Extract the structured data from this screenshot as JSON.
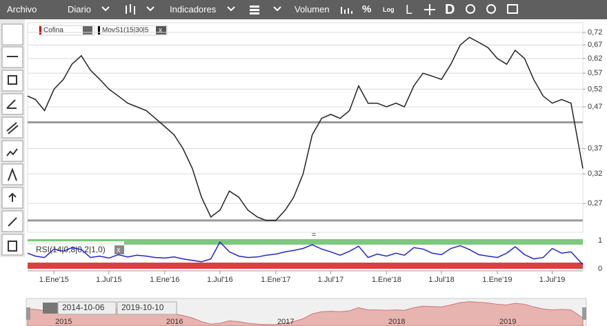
{
  "toolbar": {
    "items": [
      "Archivo",
      "Diario",
      "Indicadores",
      "Volumen",
      "%",
      "Log",
      "L",
      "D"
    ]
  },
  "legend": {
    "symbol": "Cofina",
    "indicator": "MovS1(15|30|5",
    "close": "x"
  },
  "chart_data": [
    {
      "type": "line",
      "log_scale": true,
      "grid": true,
      "x": [
        "2014-10-06",
        "2014-11-01",
        "2014-12-01",
        "2015-01-01",
        "2015-02-01",
        "2015-03-01",
        "2015-04-01",
        "2015-05-01",
        "2015-06-01",
        "2015-07-01",
        "2015-08-01",
        "2015-09-01",
        "2015-10-01",
        "2015-11-01",
        "2015-12-01",
        "2016-01-01",
        "2016-02-01",
        "2016-03-01",
        "2016-04-01",
        "2016-05-01",
        "2016-06-01",
        "2016-07-01",
        "2016-08-01",
        "2016-09-01",
        "2016-10-01",
        "2016-11-01",
        "2016-12-01",
        "2017-01-01",
        "2017-02-01",
        "2017-03-01",
        "2017-04-01",
        "2017-05-01",
        "2017-06-01",
        "2017-07-01",
        "2017-08-01",
        "2017-09-01",
        "2017-10-01",
        "2017-11-01",
        "2017-12-01",
        "2018-01-01",
        "2018-02-01",
        "2018-03-01",
        "2018-04-01",
        "2018-05-01",
        "2018-06-01",
        "2018-07-01",
        "2018-08-01",
        "2018-09-01",
        "2018-10-01",
        "2018-11-01",
        "2018-12-01",
        "2019-01-01",
        "2019-02-01",
        "2019-03-01",
        "2019-04-01",
        "2019-05-01",
        "2019-06-01",
        "2019-07-01",
        "2019-08-01",
        "2019-09-01",
        "2019-10-10"
      ],
      "series": [
        {
          "name": "Cofina",
          "color": "#222222",
          "values": [
            0.5,
            0.49,
            0.46,
            0.52,
            0.55,
            0.6,
            0.63,
            0.58,
            0.55,
            0.52,
            0.5,
            0.48,
            0.47,
            0.46,
            0.44,
            0.42,
            0.4,
            0.37,
            0.33,
            0.28,
            0.25,
            0.26,
            0.29,
            0.28,
            0.26,
            0.25,
            0.245,
            0.245,
            0.26,
            0.28,
            0.32,
            0.4,
            0.44,
            0.45,
            0.44,
            0.46,
            0.53,
            0.48,
            0.48,
            0.47,
            0.48,
            0.47,
            0.53,
            0.57,
            0.56,
            0.55,
            0.6,
            0.67,
            0.7,
            0.68,
            0.66,
            0.62,
            0.6,
            0.65,
            0.62,
            0.55,
            0.5,
            0.48,
            0.49,
            0.48,
            0.33
          ]
        }
      ],
      "hlines": [
        0.43,
        0.245
      ],
      "ylim": [
        0.229,
        0.761
      ],
      "yticks": [
        {
          "value": 0.72,
          "label": "0,72"
        },
        {
          "value": 0.67,
          "label": "0,67"
        },
        {
          "value": 0.62,
          "label": "0,62"
        },
        {
          "value": 0.57,
          "label": "0,57"
        },
        {
          "value": 0.52,
          "label": "0,52"
        },
        {
          "value": 0.47,
          "label": "0,47"
        },
        {
          "value": 0.37,
          "label": "0,37"
        },
        {
          "value": 0.32,
          "label": "0,32"
        },
        {
          "value": 0.27,
          "label": "0,27"
        }
      ],
      "xticks": [
        {
          "value": "2015-01-01",
          "label": "1.Ene'15"
        },
        {
          "value": "2015-07-01",
          "label": "1.Jul'15"
        },
        {
          "value": "2016-01-01",
          "label": "1.Ene'16"
        },
        {
          "value": "2016-07-01",
          "label": "1.Jul'16"
        },
        {
          "value": "2017-01-01",
          "label": "1.Ene'17"
        },
        {
          "value": "2017-07-01",
          "label": "1.Jul'17"
        },
        {
          "value": "2018-01-01",
          "label": "1.Ene'18"
        },
        {
          "value": "2018-07-01",
          "label": "1.Jul'18"
        },
        {
          "value": "2019-01-01",
          "label": "1.Ene'19"
        },
        {
          "value": "2019-07-01",
          "label": "1.Jul'19"
        }
      ]
    },
    {
      "type": "line",
      "title": "RSI(14|0,8|0,2|1,0)",
      "close": "x",
      "series": [
        {
          "name": "RSI",
          "color": "#2222cc",
          "values": [
            0.55,
            0.45,
            0.4,
            0.7,
            0.62,
            0.75,
            0.68,
            0.4,
            0.45,
            0.38,
            0.5,
            0.42,
            0.48,
            0.45,
            0.4,
            0.38,
            0.42,
            0.35,
            0.3,
            0.25,
            0.35,
            0.95,
            0.6,
            0.45,
            0.4,
            0.42,
            0.48,
            0.52,
            0.6,
            0.65,
            0.72,
            0.85,
            0.7,
            0.6,
            0.48,
            0.62,
            0.8,
            0.4,
            0.52,
            0.45,
            0.55,
            0.48,
            0.75,
            0.7,
            0.55,
            0.5,
            0.72,
            0.82,
            0.68,
            0.5,
            0.45,
            0.4,
            0.55,
            0.78,
            0.5,
            0.35,
            0.4,
            0.72,
            0.55,
            0.6,
            0.15
          ]
        }
      ],
      "ylim": [
        0,
        1
      ],
      "yticks": [
        1,
        0
      ]
    }
  ],
  "navigator": {
    "start": "2014-10-06",
    "end": "2019-10-10",
    "years": [
      "2015",
      "2016",
      "2017",
      "2018",
      "2019"
    ]
  }
}
